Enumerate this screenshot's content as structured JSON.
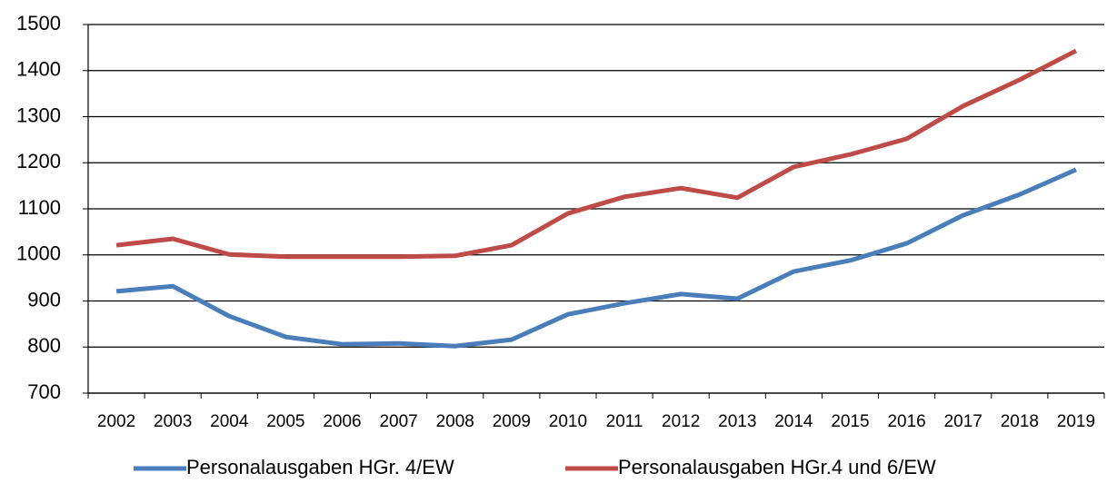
{
  "chart_data": {
    "type": "line",
    "categories": [
      "2002",
      "2003",
      "2004",
      "2005",
      "2006",
      "2007",
      "2008",
      "2009",
      "2010",
      "2011",
      "2012",
      "2013",
      "2014",
      "2015",
      "2016",
      "2017",
      "2018",
      "2019"
    ],
    "series": [
      {
        "name": "Personalausgaben HGr. 4/EW",
        "color": "#4a7ebb",
        "values": [
          921,
          932,
          867,
          822,
          806,
          808,
          802,
          816,
          871,
          895,
          915,
          905,
          964,
          988,
          1025,
          1086,
          1131,
          1185
        ]
      },
      {
        "name": "Personalausgaben HGr.4 und 6/EW",
        "color": "#be4b48",
        "values": [
          1021,
          1035,
          1001,
          996,
          996,
          996,
          998,
          1021,
          1090,
          1126,
          1145,
          1124,
          1191,
          1218,
          1252,
          1323,
          1380,
          1443
        ]
      }
    ],
    "ylim": [
      700,
      1500
    ],
    "yticks": [
      700,
      800,
      900,
      1000,
      1100,
      1200,
      1300,
      1400,
      1500
    ],
    "grid": true,
    "legend": "bottom"
  }
}
